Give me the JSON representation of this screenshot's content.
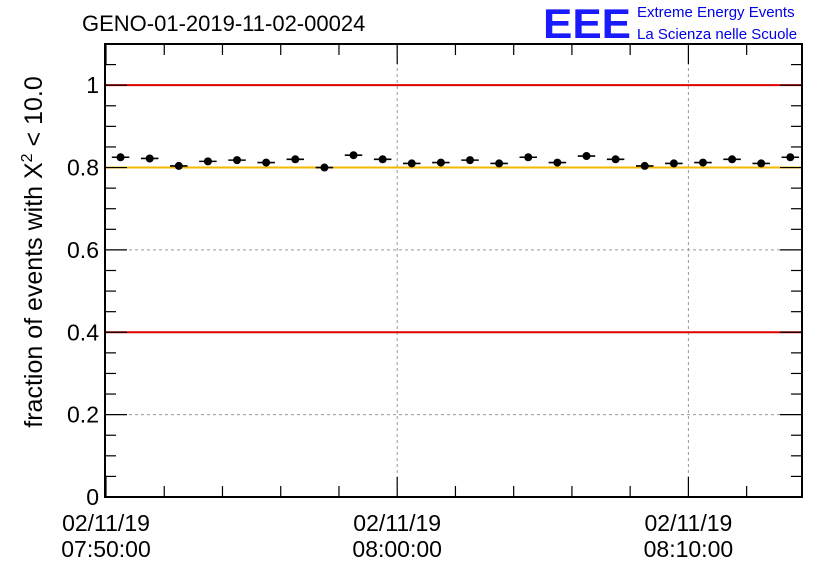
{
  "chart_data": {
    "type": "scatter",
    "title": "GENO-01-2019-11-02-00024",
    "ylabel_prefix": "fraction of events with ",
    "ylabel_symbol": "X",
    "ylabel_power": "2",
    "ylabel_suffix": " < 10.0",
    "xlabel": "",
    "ylim": [
      0,
      1.1
    ],
    "xlim_minutes": [
      0,
      24
    ],
    "y_ticks": [
      {
        "value": 0,
        "label": "0"
      },
      {
        "value": 0.2,
        "label": "0.2"
      },
      {
        "value": 0.4,
        "label": "0.4"
      },
      {
        "value": 0.6,
        "label": "0.6"
      },
      {
        "value": 0.8,
        "label": "0.8"
      },
      {
        "value": 1,
        "label": "1"
      }
    ],
    "x_ticks": [
      {
        "minute": 0,
        "date": "02/11/19",
        "time": "07:50:00"
      },
      {
        "minute": 10,
        "date": "02/11/19",
        "time": "08:00:00"
      },
      {
        "minute": 20,
        "date": "02/11/19",
        "time": "08:10:00"
      }
    ],
    "grid": true,
    "reference_lines": [
      {
        "y": 1.0,
        "color": "#e00000"
      },
      {
        "y": 0.8,
        "color": "#f5b800"
      },
      {
        "y": 0.4,
        "color": "#e00000"
      }
    ],
    "bin_width_minutes": 0.6,
    "x": [
      0.5,
      1.5,
      2.5,
      3.5,
      4.5,
      5.5,
      6.5,
      7.5,
      8.5,
      9.5,
      10.5,
      11.5,
      12.5,
      13.5,
      14.5,
      15.5,
      16.5,
      17.5,
      18.5,
      19.5,
      20.5,
      21.5,
      22.5,
      23.5
    ],
    "values": [
      0.825,
      0.822,
      0.804,
      0.815,
      0.818,
      0.812,
      0.82,
      0.8,
      0.83,
      0.82,
      0.81,
      0.812,
      0.818,
      0.81,
      0.825,
      0.812,
      0.828,
      0.82,
      0.804,
      0.81,
      0.812,
      0.82,
      0.81,
      0.825
    ]
  },
  "logo": {
    "mark": "EEE",
    "line1": "Extreme Energy Events",
    "line2": "La Scienza nelle Scuole",
    "color": "#1a1aff"
  }
}
